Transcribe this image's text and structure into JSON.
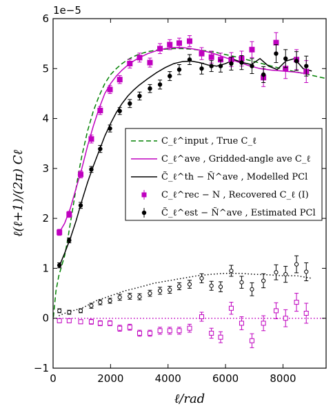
{
  "chart_data": {
    "type": "scatter",
    "xlabel": "ℓ/rad",
    "ylabel": "ℓ(ℓ+1)/(2π) Cℓ",
    "y_offset_label": "1e−5",
    "xlim": [
      0,
      9500
    ],
    "ylim": [
      -1,
      6
    ],
    "xticks": [
      0,
      2000,
      4000,
      6000,
      8000
    ],
    "yticks": [
      -1,
      0,
      1,
      2,
      3,
      4,
      5,
      6
    ],
    "grid": false,
    "legend_position": "center-right",
    "colors": {
      "magenta": "#bf00bf",
      "green": "#008000",
      "black": "#000000"
    },
    "series": [
      {
        "name": "Cℓ^input, True Cℓ",
        "legend_label": "C_ℓ^input , True C_ℓ",
        "style": "dashed-line",
        "color": "#008000",
        "x": [
          10,
          100,
          200,
          300,
          400,
          500,
          600,
          700,
          800,
          900,
          1000,
          1200,
          1400,
          1600,
          1800,
          2000,
          2200,
          2400,
          2600,
          2800,
          3000,
          3300,
          3600,
          3900,
          4200,
          4500,
          4800,
          5100,
          5400,
          5700,
          6000,
          6400,
          6800,
          7200,
          7600,
          8000,
          8400,
          8800,
          9200,
          9500
        ],
        "y": [
          0.02,
          0.55,
          0.85,
          1.05,
          1.25,
          1.55,
          1.9,
          2.25,
          2.6,
          2.95,
          3.25,
          3.75,
          4.15,
          4.45,
          4.7,
          4.88,
          5.0,
          5.1,
          5.18,
          5.24,
          5.29,
          5.34,
          5.37,
          5.39,
          5.4,
          5.4,
          5.39,
          5.37,
          5.35,
          5.32,
          5.28,
          5.23,
          5.17,
          5.11,
          5.05,
          4.99,
          4.94,
          4.89,
          4.84,
          4.8
        ]
      },
      {
        "name": "Gridded-angle ave Cℓ",
        "legend_label": "C_ℓ^ave , Gridded-angle ave C_ℓ",
        "style": "solid-line",
        "color": "#bf00bf",
        "x": [
          200,
          400,
          600,
          800,
          1000,
          1200,
          1400,
          1600,
          1800,
          2000,
          2200,
          2400,
          2600,
          2800,
          3000,
          3300,
          3600,
          3900,
          4200,
          4500,
          4800,
          5100,
          5400,
          5700,
          6000,
          6400,
          6800,
          7200,
          7600,
          8000,
          8400,
          8800
        ],
        "y": [
          1.7,
          1.9,
          2.2,
          2.6,
          3.0,
          3.45,
          3.85,
          4.2,
          4.5,
          4.7,
          4.85,
          4.97,
          5.07,
          5.15,
          5.22,
          5.3,
          5.36,
          5.4,
          5.42,
          5.42,
          5.4,
          5.37,
          5.33,
          5.28,
          5.22,
          5.14,
          5.06,
          5.0,
          4.97,
          4.95,
          4.93,
          4.9
        ]
      },
      {
        "name": "Modelled PCl",
        "legend_label": "C̃_ℓ^th − Ñ^ave , Modelled PCl",
        "style": "solid-line",
        "color": "#000000",
        "x": [
          200,
          400,
          600,
          800,
          1000,
          1200,
          1400,
          1600,
          1800,
          2000,
          2200,
          2400,
          2600,
          2800,
          3000,
          3300,
          3600,
          3900,
          4200,
          4500,
          4800,
          5100,
          5400,
          5700,
          6000,
          6300,
          6600,
          6900,
          7200,
          7500,
          7800,
          8100,
          8400,
          8700,
          9000
        ],
        "y": [
          1.02,
          1.3,
          1.6,
          1.95,
          2.35,
          2.72,
          3.05,
          3.35,
          3.65,
          3.9,
          4.12,
          4.3,
          4.45,
          4.57,
          4.67,
          4.8,
          4.92,
          5.02,
          5.1,
          5.14,
          5.15,
          5.12,
          5.07,
          5.05,
          5.1,
          5.18,
          5.12,
          5.08,
          5.2,
          5.05,
          4.98,
          5.15,
          5.2,
          5.0,
          4.95
        ]
      },
      {
        "name": "Recovered Cℓ (I)",
        "legend_label": "C_ℓ^rec − N , Recovered C_ℓ (I)",
        "style": "square-filled",
        "color": "#bf00bf",
        "x": [
          220,
          560,
          960,
          1330,
          1640,
          1980,
          2320,
          2670,
          3010,
          3370,
          3720,
          4060,
          4390,
          4750,
          5170,
          5510,
          5830,
          6200,
          6560,
          6920,
          7320,
          7760,
          8090,
          8470,
          8810
        ],
        "y": [
          1.72,
          2.08,
          2.88,
          3.59,
          4.16,
          4.58,
          4.78,
          5.1,
          5.22,
          5.12,
          5.4,
          5.48,
          5.51,
          5.55,
          5.3,
          5.23,
          5.18,
          5.18,
          5.2,
          5.38,
          4.82,
          5.52,
          5.0,
          5.18,
          4.94
        ],
        "yerr": [
          0.06,
          0.06,
          0.07,
          0.08,
          0.08,
          0.08,
          0.08,
          0.09,
          0.09,
          0.09,
          0.1,
          0.1,
          0.1,
          0.11,
          0.12,
          0.12,
          0.13,
          0.14,
          0.15,
          0.16,
          0.18,
          0.2,
          0.2,
          0.2,
          0.22
        ]
      },
      {
        "name": "Estimated PCl",
        "legend_label": "C̃_ℓ^est − Ñ^ave , Estimated PCl",
        "style": "circle-filled",
        "color": "#000000",
        "x": [
          220,
          560,
          960,
          1330,
          1640,
          1980,
          2320,
          2670,
          3010,
          3370,
          3720,
          4060,
          4390,
          4750,
          5170,
          5510,
          5830,
          6200,
          6560,
          6920,
          7320,
          7760,
          8090,
          8470,
          8810
        ],
        "y": [
          1.06,
          1.56,
          2.26,
          2.98,
          3.39,
          3.8,
          4.15,
          4.3,
          4.45,
          4.6,
          4.68,
          4.85,
          4.98,
          5.18,
          5.0,
          5.05,
          5.05,
          5.1,
          5.12,
          5.05,
          4.88,
          5.3,
          5.2,
          5.15,
          5.05
        ],
        "yerr": [
          0.05,
          0.05,
          0.06,
          0.06,
          0.07,
          0.07,
          0.07,
          0.08,
          0.08,
          0.08,
          0.09,
          0.09,
          0.1,
          0.1,
          0.11,
          0.11,
          0.12,
          0.13,
          0.14,
          0.15,
          0.16,
          0.18,
          0.18,
          0.19,
          0.2
        ]
      },
      {
        "name": "estimated-residual (open circles)",
        "style": "circle-open",
        "color": "#000000",
        "x": [
          220,
          560,
          960,
          1330,
          1640,
          1980,
          2320,
          2670,
          3010,
          3370,
          3720,
          4060,
          4390,
          4750,
          5170,
          5510,
          5830,
          6200,
          6560,
          6920,
          7320,
          7760,
          8090,
          8470,
          8810
        ],
        "y": [
          0.15,
          0.12,
          0.15,
          0.25,
          0.32,
          0.35,
          0.42,
          0.44,
          0.43,
          0.5,
          0.55,
          0.57,
          0.64,
          0.68,
          0.8,
          0.65,
          0.63,
          0.95,
          0.72,
          0.58,
          0.75,
          0.92,
          0.88,
          1.08,
          0.93
        ],
        "yerr": [
          0.04,
          0.04,
          0.04,
          0.05,
          0.05,
          0.05,
          0.06,
          0.06,
          0.06,
          0.06,
          0.07,
          0.07,
          0.07,
          0.08,
          0.09,
          0.09,
          0.1,
          0.11,
          0.12,
          0.13,
          0.14,
          0.15,
          0.16,
          0.17,
          0.18
        ]
      },
      {
        "name": "recovered-residual (open squares)",
        "style": "square-open",
        "color": "#bf00bf",
        "x": [
          220,
          560,
          960,
          1330,
          1640,
          1980,
          2320,
          2670,
          3010,
          3370,
          3720,
          4060,
          4390,
          4750,
          5170,
          5510,
          5830,
          6200,
          6560,
          6920,
          7320,
          7760,
          8090,
          8470,
          8810
        ],
        "y": [
          -0.05,
          -0.05,
          -0.07,
          -0.07,
          -0.1,
          -0.1,
          -0.2,
          -0.18,
          -0.3,
          -0.3,
          -0.25,
          -0.25,
          -0.25,
          -0.2,
          0.03,
          -0.3,
          -0.38,
          0.2,
          -0.1,
          -0.45,
          -0.1,
          0.15,
          0.0,
          0.32,
          0.1
        ],
        "yerr": [
          0.04,
          0.04,
          0.04,
          0.05,
          0.05,
          0.05,
          0.06,
          0.06,
          0.06,
          0.06,
          0.07,
          0.07,
          0.07,
          0.08,
          0.09,
          0.1,
          0.11,
          0.12,
          0.13,
          0.14,
          0.15,
          0.16,
          0.17,
          0.18,
          0.2
        ]
      },
      {
        "name": "black dotted curve",
        "style": "dotted-line",
        "color": "#000000",
        "x": [
          200,
          500,
          1000,
          1500,
          2000,
          2500,
          3000,
          3500,
          4000,
          4500,
          5000,
          5500,
          6000,
          6500,
          7000,
          7500,
          8000,
          8500,
          9000
        ],
        "y": [
          0.05,
          0.12,
          0.2,
          0.35,
          0.45,
          0.55,
          0.62,
          0.7,
          0.75,
          0.8,
          0.85,
          0.88,
          0.9,
          0.9,
          0.88,
          0.87,
          0.85,
          0.85,
          0.8
        ]
      },
      {
        "name": "magenta dotted zero line",
        "style": "dotted-line",
        "color": "#bf00bf",
        "x": [
          0,
          9500
        ],
        "y": [
          0.0,
          0.0
        ]
      }
    ]
  }
}
